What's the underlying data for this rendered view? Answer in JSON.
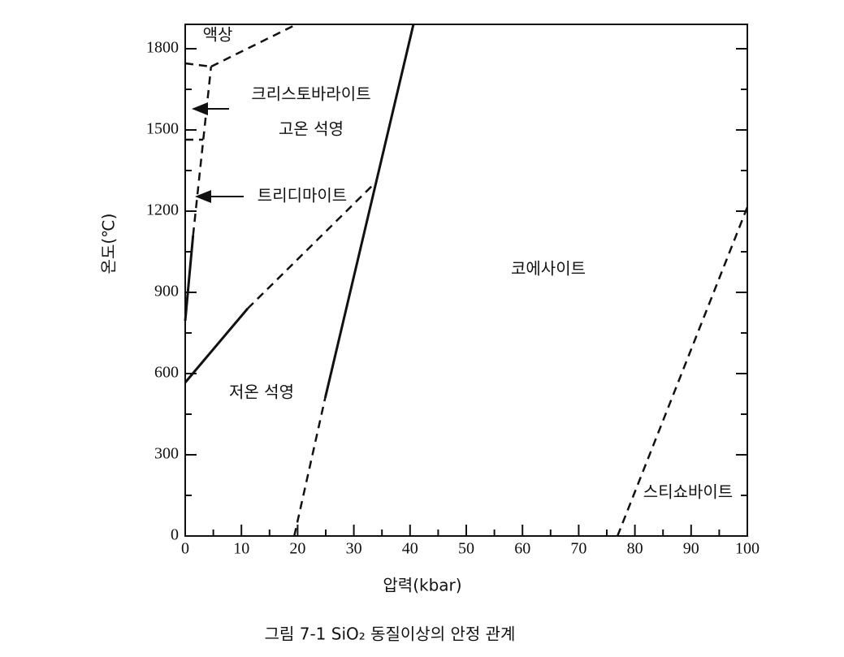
{
  "chart_data": {
    "type": "line",
    "xlabel": "압력(kbar)",
    "ylabel": "온도(℃)",
    "caption": "그림 7-1   SiO₂ 동질이상의 안정 관계",
    "xlim": [
      0,
      100
    ],
    "xticks": [
      0,
      10,
      20,
      30,
      40,
      50,
      60,
      70,
      80,
      90,
      100
    ],
    "ylim": [
      0,
      1890
    ],
    "yticks": [
      0,
      300,
      600,
      900,
      1200,
      1500,
      1800
    ],
    "color": "#111111",
    "series": [
      {
        "style": "solid",
        "x": [
          0,
          11.1
        ],
        "values": [
          567,
          840
        ]
      },
      {
        "style": "dashed",
        "x": [
          11.1,
          33.8
        ],
        "values": [
          840,
          1305
        ]
      },
      {
        "style": "dashed",
        "x": [
          19.4,
          24.9
        ],
        "values": [
          0,
          510
        ]
      },
      {
        "style": "solid",
        "x": [
          24.9,
          40.6
        ],
        "values": [
          510,
          1890
        ]
      },
      {
        "style": "dashed",
        "x": [
          76.9,
          100
        ],
        "values": [
          0,
          1215
        ]
      },
      {
        "style": "solid",
        "x": [
          0,
          1.4
        ],
        "values": [
          795,
          1110
        ]
      },
      {
        "style": "dashed",
        "x": [
          1.4,
          4.6
        ],
        "values": [
          1110,
          1734
        ]
      },
      {
        "style": "dashed",
        "x": [
          0,
          4.6
        ],
        "values": [
          1746,
          1734
        ]
      },
      {
        "style": "dashed",
        "x": [
          4.6,
          19.8
        ],
        "values": [
          1734,
          1890
        ]
      },
      {
        "style": "dashed",
        "x": [
          0,
          3.2
        ],
        "values": [
          1464,
          1464
        ]
      }
    ],
    "annotations": [
      "액상",
      "크리스토바라이트",
      "고온 석영",
      "트리디마이트",
      "코에사이트",
      "저온 석영",
      "스티쇼바이트"
    ]
  }
}
